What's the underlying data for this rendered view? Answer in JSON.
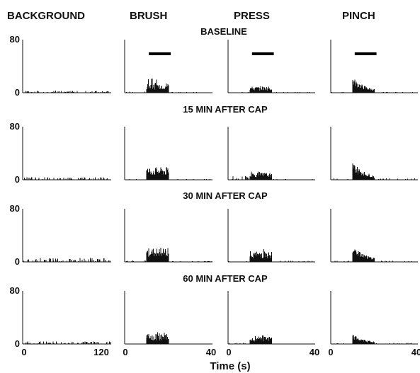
{
  "chart_data": {
    "type": "bar",
    "subtype": "peristimulus time histogram grid",
    "columns": [
      "BACKGROUND",
      "BRUSH",
      "PRESS",
      "PINCH"
    ],
    "rows": [
      "BASELINE",
      "15 MIN AFTER CAP",
      "30 MIN AFTER CAP",
      "60 MIN AFTER CAP"
    ],
    "xlabel": "Time (s)",
    "ylabel": "",
    "ylim": [
      0,
      80
    ],
    "y_tick_labels": [
      "0",
      "80"
    ],
    "xlim": {
      "BACKGROUND": [
        0,
        125
      ],
      "BRUSH": [
        0,
        40
      ],
      "PRESS": [
        0,
        40
      ],
      "PINCH": [
        0,
        40
      ]
    },
    "x_tick_labels": {
      "BACKGROUND": [
        "0",
        "120"
      ],
      "BRUSH": [
        "0",
        "40"
      ],
      "PRESS": [
        "0",
        "40"
      ],
      "PINCH": [
        "0",
        "40"
      ]
    },
    "stimulus_bar": {
      "shown_in_row": "BASELINE",
      "start_s": 10,
      "end_s": 20
    },
    "grid": false,
    "legend": "none",
    "panels": [
      [
        {
          "desc": "background",
          "peak_0s": 80,
          "mean": 1,
          "max": 3
        },
        {
          "desc": "brush",
          "peak_0s": 80,
          "stim_mean": 11,
          "stim_max": 23,
          "pre_mean": 0.4,
          "post_mean": 0.3
        },
        {
          "desc": "press",
          "peak_0s": 80,
          "stim_mean": 7,
          "stim_max": 14,
          "pre_mean": 0.4,
          "post_mean": 0.3
        },
        {
          "desc": "pinch",
          "peak_0s": 80,
          "stim_peak": 23,
          "stim_mean": 9,
          "pre_mean": 0.3,
          "post_mean": 0.3
        }
      ],
      [
        {
          "desc": "background",
          "peak_0s": 80,
          "mean": 1,
          "max": 4
        },
        {
          "desc": "brush",
          "peak_0s": 80,
          "stim_mean": 14,
          "stim_max": 21,
          "pre_mean": 0.5,
          "post_mean": 0.3
        },
        {
          "desc": "press",
          "peak_0s": 80,
          "stim_mean": 8,
          "stim_max": 14,
          "pre_mean": 1.5,
          "post_mean": 0.3
        },
        {
          "desc": "pinch",
          "peak_0s": 80,
          "stim_peak": 27,
          "stim_mean": 12,
          "pre_mean": 0.5,
          "post_mean": 0.5
        }
      ],
      [
        {
          "desc": "background",
          "peak_0s": 80,
          "mean": 1,
          "max": 6
        },
        {
          "desc": "brush",
          "peak_0s": 80,
          "stim_mean": 15,
          "stim_max": 25,
          "pre_mean": 0.5,
          "post_mean": 0.3
        },
        {
          "desc": "press",
          "peak_0s": 80,
          "stim_mean": 12,
          "stim_max": 20,
          "pre_mean": 0.8,
          "post_mean": 0.5
        },
        {
          "desc": "pinch",
          "peak_0s": 80,
          "stim_peak": 25,
          "stim_mean": 14,
          "pre_mean": 0.5,
          "post_mean": 0.5
        }
      ],
      [
        {
          "desc": "background",
          "peak_0s": 80,
          "mean": 1,
          "max": 4
        },
        {
          "desc": "brush",
          "peak_0s": 80,
          "stim_mean": 11,
          "stim_max": 18,
          "pre_mean": 0.2,
          "post_mean": 0.2
        },
        {
          "desc": "press",
          "peak_0s": 80,
          "stim_mean": 8,
          "stim_max": 13,
          "pre_mean": 0.5,
          "post_mean": 0.2
        },
        {
          "desc": "pinch",
          "peak_0s": 80,
          "stim_peak": 14,
          "stim_mean": 8,
          "pre_mean": 0.3,
          "post_mean": 0.5
        }
      ]
    ]
  }
}
